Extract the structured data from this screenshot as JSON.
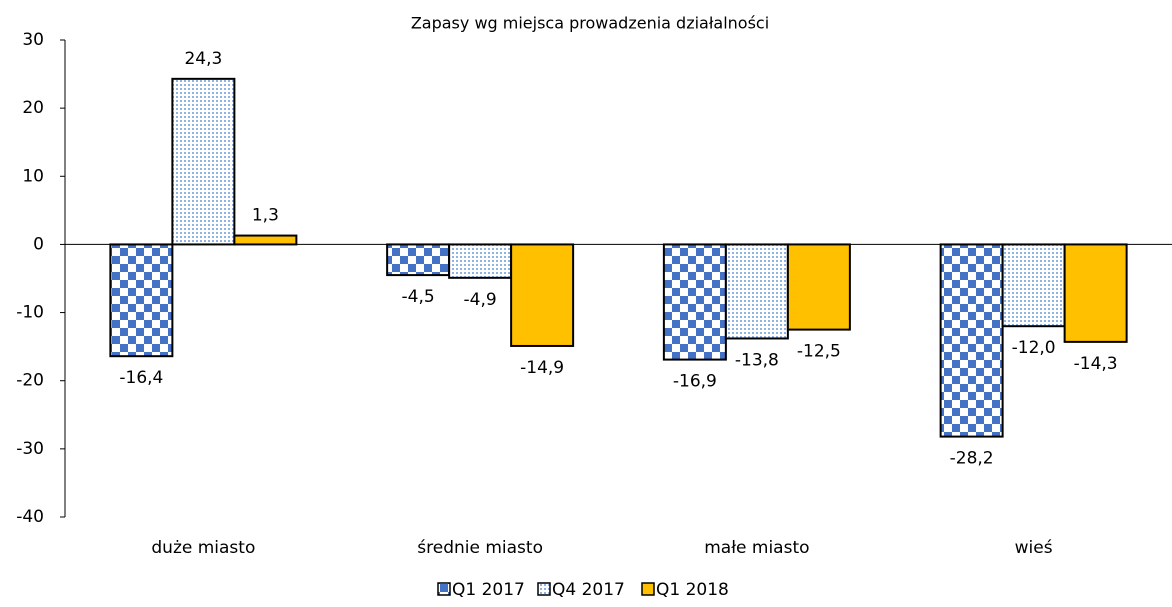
{
  "chart_data": {
    "type": "bar",
    "title": "Zapasy wg miejsca prowadzenia działalności",
    "categories": [
      "duże miasto",
      "średnie miasto",
      "małe miasto",
      "wieś"
    ],
    "series": [
      {
        "name": "Q1 2017",
        "color": "#4472c4",
        "pattern": "checker",
        "values": [
          -16.4,
          -4.5,
          -16.9,
          -28.2
        ],
        "value_labels": [
          "-16,4",
          "-4,5",
          "-16,9",
          "-28,2"
        ]
      },
      {
        "name": "Q4 2017",
        "color": "#8fb4e3",
        "pattern": "dots",
        "values": [
          24.3,
          -4.9,
          -13.8,
          -12.0
        ],
        "value_labels": [
          "24,3",
          "-4,9",
          "-13,8",
          "-12,0"
        ]
      },
      {
        "name": "Q1 2018",
        "color": "#ffc000",
        "pattern": "solid",
        "values": [
          1.3,
          -14.9,
          -12.5,
          -14.3
        ],
        "value_labels": [
          "1,3",
          "-14,9",
          "-12,5",
          "-14,3"
        ]
      }
    ],
    "ylim": [
      -40,
      30
    ],
    "yticks": [
      -40,
      -30,
      -20,
      -10,
      0,
      10,
      20,
      30
    ],
    "grid": false,
    "legend": "bottom"
  }
}
